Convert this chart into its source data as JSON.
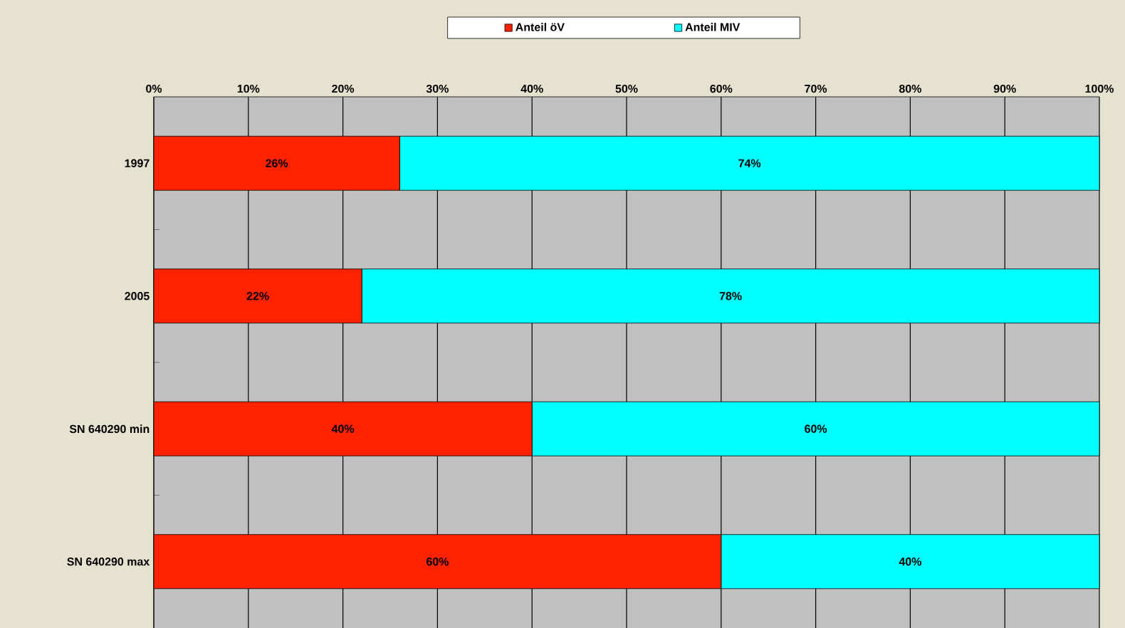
{
  "chart_data": {
    "type": "bar",
    "orientation": "horizontal",
    "stacked": true,
    "categories": [
      "1997",
      "2005",
      "SN 640290 min",
      "SN 640290 max"
    ],
    "series": [
      {
        "name": "Anteil öV",
        "color": "#ff2200",
        "values": [
          26,
          22,
          40,
          60
        ],
        "value_labels": [
          "26%",
          "22%",
          "40%",
          "60%"
        ]
      },
      {
        "name": "Anteil MIV",
        "color": "#00ffff",
        "values": [
          74,
          78,
          60,
          40
        ],
        "value_labels": [
          "74%",
          "78%",
          "60%",
          "40%"
        ]
      }
    ],
    "xlim": [
      0,
      100
    ],
    "xticks": [
      {
        "value": 0,
        "label": "0%"
      },
      {
        "value": 10,
        "label": "10%"
      },
      {
        "value": 20,
        "label": "20%"
      },
      {
        "value": 30,
        "label": "30%"
      },
      {
        "value": 40,
        "label": "40%"
      },
      {
        "value": 50,
        "label": "50%"
      },
      {
        "value": 60,
        "label": "60%"
      },
      {
        "value": 70,
        "label": "70%"
      },
      {
        "value": 80,
        "label": "80%"
      },
      {
        "value": 90,
        "label": "90%"
      },
      {
        "value": 100,
        "label": "100%"
      }
    ],
    "grid": "x",
    "legend": "top"
  }
}
